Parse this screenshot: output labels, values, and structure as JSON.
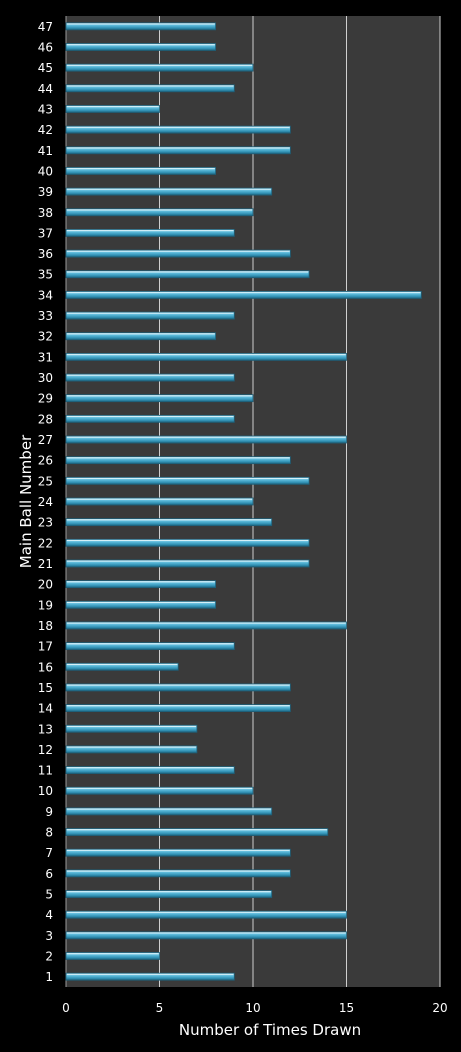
{
  "chart_data": {
    "type": "bar",
    "orientation": "horizontal",
    "title": "",
    "xlabel": "Number of Times Drawn",
    "ylabel": "Main Ball Number",
    "xlim": [
      0,
      20
    ],
    "xticks": [
      "0",
      "5",
      "10",
      "15",
      "20"
    ],
    "grid": "vertical",
    "categories": [
      "1",
      "2",
      "3",
      "4",
      "5",
      "6",
      "7",
      "8",
      "9",
      "10",
      "11",
      "12",
      "13",
      "14",
      "15",
      "16",
      "17",
      "18",
      "19",
      "20",
      "21",
      "22",
      "23",
      "24",
      "25",
      "26",
      "27",
      "28",
      "29",
      "30",
      "31",
      "32",
      "33",
      "34",
      "35",
      "36",
      "37",
      "38",
      "39",
      "40",
      "41",
      "42",
      "43",
      "44",
      "45",
      "46",
      "47"
    ],
    "values": [
      9,
      5,
      15,
      15,
      11,
      12,
      12,
      14,
      11,
      10,
      9,
      7,
      7,
      12,
      12,
      6,
      9,
      15,
      8,
      8,
      13,
      13,
      11,
      10,
      13,
      12,
      15,
      9,
      10,
      9,
      15,
      8,
      9,
      19,
      13,
      12,
      9,
      10,
      11,
      8,
      12,
      12,
      5,
      9,
      10,
      8,
      8
    ],
    "colors": {
      "background": "#000000",
      "plot_area": "#3a3a3a",
      "bar": "#4aa8c8",
      "bar_edge": "#1e5f78",
      "grid": "#cfcfcf",
      "text": "#ffffff"
    }
  }
}
